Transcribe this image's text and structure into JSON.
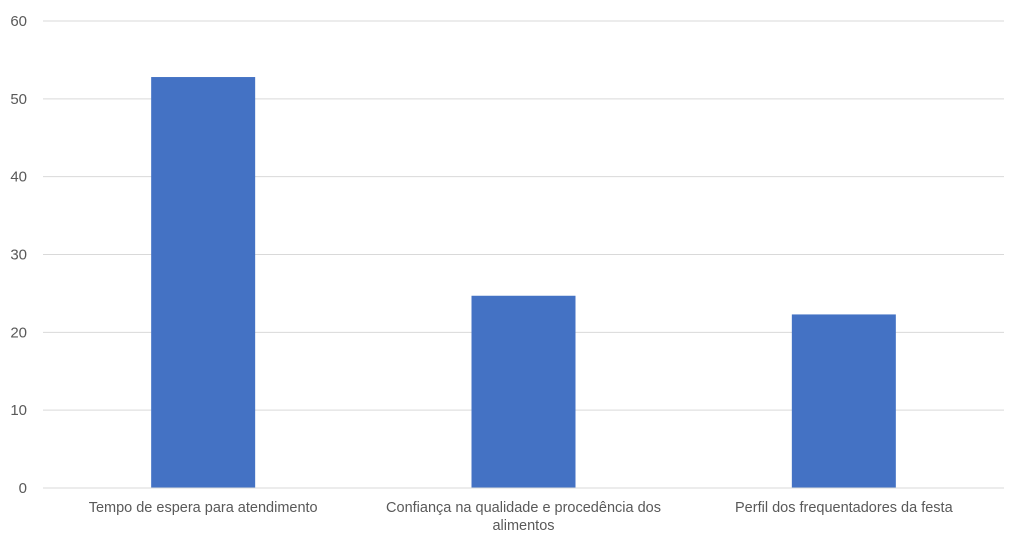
{
  "chart_data": {
    "type": "bar",
    "title": "",
    "xlabel": "",
    "ylabel": "",
    "categories": [
      [
        "Tempo de espera para atendimento"
      ],
      [
        "Confiança na qualidade e procedência dos",
        "alimentos"
      ],
      [
        "Perfil dos frequentadores da festa"
      ]
    ],
    "values": [
      52.8,
      24.7,
      22.3
    ],
    "ylim": [
      0,
      60
    ],
    "yticks": [
      0,
      10,
      20,
      30,
      40,
      50,
      60
    ],
    "grid": true,
    "legend": "none",
    "bar_color": "#4472C4",
    "grid_color": "#D9D9D9",
    "text_color": "#595959"
  }
}
